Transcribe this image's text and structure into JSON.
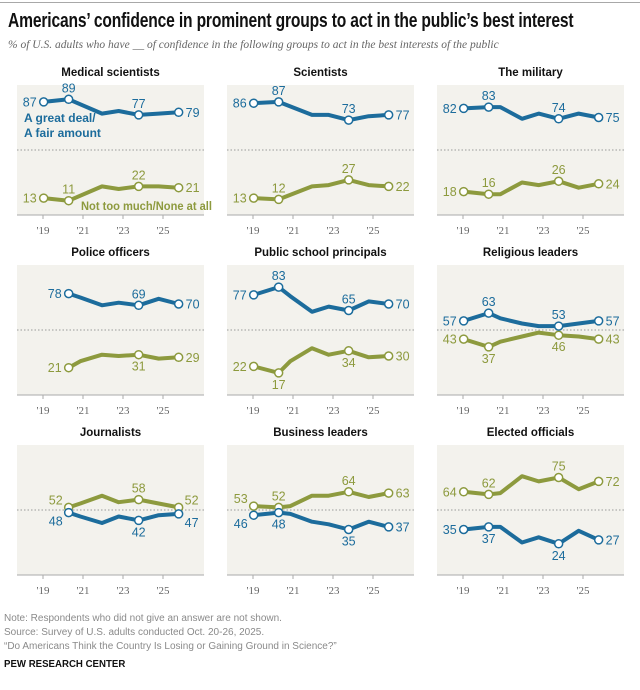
{
  "header": {
    "title": "Americans’ confidence in prominent groups to act in the public’s best interest",
    "subtitle": "% of U.S. adults who have __ of confidence in the following groups to act in the best interests of the public"
  },
  "footer": {
    "note": "Note: Respondents who did not give an answer are not shown.",
    "source": "Source: Survey of U.S. adults conducted Oct. 20-26, 2025.",
    "report": "“Do Americans Think the Country Is Losing or Gaining Ground in Science?”",
    "brand": "PEW RESEARCH CENTER"
  },
  "chart_data": {
    "type": "line",
    "small_multiples": true,
    "x": [
      "2019-01",
      "2020-04",
      "2020-11",
      "2021-12",
      "2022-10",
      "2023-10",
      "2024-10",
      "2025-10"
    ],
    "x_tick_labels": [
      "'19",
      "'21",
      "'23",
      "'25"
    ],
    "x_tick_years": [
      2019,
      2021,
      2023,
      2025
    ],
    "ylim": [
      0,
      100
    ],
    "reference_line": 50,
    "grid": false,
    "colors": {
      "confidence": "#1c6c9c",
      "no_confidence": "#8d9a3e",
      "panel_bg": "#f3f2ed"
    },
    "series_names": [
      "A great deal/\nA fair amount",
      "Not too much/None at all"
    ],
    "series_names_lines": [
      [
        "A great deal/",
        "A fair amount"
      ],
      [
        "Not too much/None at all"
      ]
    ],
    "panels": [
      {
        "title": "Medical scientists",
        "confidence": [
          87,
          89,
          null,
          78,
          80,
          77,
          78,
          79
        ],
        "no_confidence": [
          13,
          11,
          null,
          22,
          20,
          22,
          22,
          21
        ]
      },
      {
        "title": "Scientists",
        "confidence": [
          86,
          87,
          null,
          77,
          77,
          73,
          76,
          77
        ],
        "no_confidence": [
          13,
          12,
          null,
          22,
          23,
          27,
          23,
          22
        ]
      },
      {
        "title": "The military",
        "confidence": [
          82,
          83,
          83,
          74,
          78,
          74,
          78,
          75
        ],
        "no_confidence": [
          18,
          16,
          16,
          25,
          23,
          26,
          21,
          24
        ]
      },
      {
        "title": "Police officers",
        "confidence": [
          null,
          78,
          75,
          69,
          71,
          69,
          74,
          70
        ],
        "no_confidence": [
          null,
          21,
          26,
          31,
          30,
          31,
          28,
          29
        ]
      },
      {
        "title": "Public school principals",
        "confidence": [
          77,
          83,
          76,
          64,
          68,
          65,
          72,
          70
        ],
        "no_confidence": [
          22,
          17,
          26,
          36,
          31,
          34,
          29,
          30
        ]
      },
      {
        "title": "Religious leaders",
        "confidence": [
          57,
          63,
          59,
          55,
          53,
          53,
          55,
          57
        ],
        "no_confidence": [
          43,
          37,
          41,
          45,
          48,
          46,
          45,
          43
        ]
      },
      {
        "title": "Journalists",
        "confidence": [
          null,
          48,
          45,
          40,
          45,
          42,
          46,
          47
        ],
        "no_confidence": [
          null,
          52,
          55,
          61,
          56,
          58,
          55,
          52
        ]
      },
      {
        "title": "Business leaders",
        "confidence": [
          46,
          48,
          47,
          41,
          39,
          35,
          41,
          37
        ],
        "no_confidence": [
          53,
          52,
          53,
          61,
          61,
          64,
          60,
          63
        ]
      },
      {
        "title": "Elected officials",
        "confidence": [
          35,
          37,
          37,
          25,
          29,
          24,
          34,
          27
        ],
        "no_confidence": [
          64,
          62,
          63,
          76,
          72,
          75,
          66,
          72
        ]
      }
    ]
  }
}
